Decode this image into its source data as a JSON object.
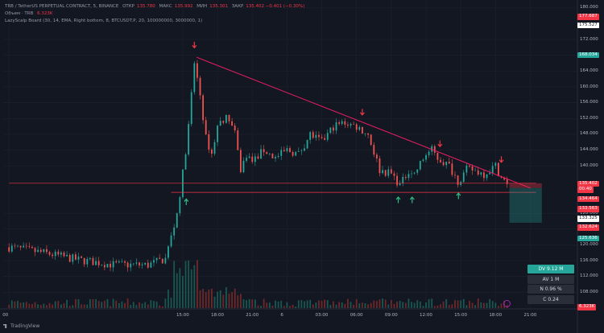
{
  "header": {
    "symbol_line": "TRB / TetherUS PERPETUAL CONTRACT, 5, BINANCE",
    "ohlc": [
      {
        "k": "ОТКР",
        "v": "135.780"
      },
      {
        "k": "МАКС",
        "v": "135.992"
      },
      {
        "k": "МИН",
        "v": "135.301"
      },
      {
        "k": "ЗАКР",
        "v": "135.402 −0.401 (−0.30%)"
      }
    ],
    "volume_line_label": "Объем · TRB",
    "volume_line_value": "6.323K",
    "indicator_line": "LazyScalp Board (30, 14, EMA, Right bottom, 8, BTCUSDT.P, 20, 100000000, 3000000, 1)"
  },
  "stats_panel": {
    "items": [
      "DV 9.12 M",
      "AV 1 M",
      "N 0.96 %",
      "C  0.24"
    ]
  },
  "branding": {
    "label": "TradingView"
  },
  "colors": {
    "bull": "#26a69a",
    "bear": "#ef5350",
    "trendline": "#e91e63",
    "support": "#f23645",
    "down_arrow": "#f23645",
    "up_arrow": "#2ebd85"
  },
  "price_axis": {
    "ticks": [
      "180.000",
      "172.000",
      "168.000",
      "164.000",
      "160.000",
      "156.000",
      "152.000",
      "148.000",
      "144.000",
      "140.000",
      "128.000",
      "124.000",
      "120.000",
      "116.000",
      "112.000",
      "108.000"
    ],
    "tick_values": [
      180,
      172,
      168,
      164,
      160,
      156,
      152,
      148,
      144,
      140,
      128,
      124,
      120,
      116,
      112,
      108
    ],
    "tags": [
      {
        "text": "177.687",
        "value": 177.687,
        "color": "#f23645"
      },
      {
        "text": "175.527",
        "value": 175.527,
        "color": "#ffffff",
        "text_color": "#131722"
      },
      {
        "text": "168.034",
        "value": 168.034,
        "color": "#26a69a"
      },
      {
        "text": "135.402",
        "value": 135.402,
        "color": "#f23645"
      },
      {
        "text": "00:40",
        "value": 133.9,
        "color": "#f23645"
      },
      {
        "text": "134.464",
        "value": 131.5,
        "color": "#f23645"
      },
      {
        "text": "133.563",
        "value": 129.0,
        "color": "#f23645"
      },
      {
        "text": "133.325",
        "value": 126.6,
        "color": "#ffffff",
        "text_color": "#131722"
      },
      {
        "text": "132.624",
        "value": 124.3,
        "color": "#f23645"
      },
      {
        "text": "125.636",
        "value": 121.6,
        "color": "#26a69a"
      },
      {
        "text": "6.323K",
        "value": 104.2,
        "color": "#f23645"
      }
    ]
  },
  "time_axis": {
    "ticks": [
      "00",
      "15:00",
      "18:00",
      "21:00",
      "6",
      "03:00",
      "06:00",
      "09:00",
      "12:00",
      "15:00",
      "18:00",
      "21:00"
    ],
    "tick_hours": [
      0,
      15,
      18,
      21,
      24,
      27,
      30,
      33,
      36,
      39,
      42,
      45
    ]
  },
  "chart_data": {
    "type": "candlestick",
    "title": "TRB / TetherUS PERPETUAL CONTRACT, 5, BINANCE",
    "xlabel": "",
    "ylabel": "",
    "ylim": [
      104,
      182
    ],
    "x_unit": "hours",
    "series": [
      {
        "name": "TRB",
        "points": [
          {
            "t": 0,
            "close": 119.4
          },
          {
            "t": 3,
            "close": 118.0
          },
          {
            "t": 6,
            "close": 116.2
          },
          {
            "t": 9,
            "close": 115.0
          },
          {
            "t": 12,
            "close": 114.9
          },
          {
            "t": 13.5,
            "close": 116.5
          },
          {
            "t": 14,
            "close": 122
          },
          {
            "t": 14.5,
            "close": 128
          },
          {
            "t": 15,
            "close": 138
          },
          {
            "t": 15.5,
            "close": 150
          },
          {
            "t": 16,
            "close": 166
          },
          {
            "t": 16.5,
            "close": 158
          },
          {
            "t": 17,
            "close": 147
          },
          {
            "t": 17.5,
            "close": 143
          },
          {
            "t": 18,
            "close": 150
          },
          {
            "t": 18.5,
            "close": 152
          },
          {
            "t": 19,
            "close": 152
          },
          {
            "t": 19.5,
            "close": 148
          },
          {
            "t": 20,
            "close": 139
          },
          {
            "t": 20.5,
            "close": 143
          },
          {
            "t": 21,
            "close": 141
          },
          {
            "t": 22,
            "close": 144
          },
          {
            "t": 23,
            "close": 142
          },
          {
            "t": 24,
            "close": 144
          },
          {
            "t": 25,
            "close": 143
          },
          {
            "t": 26,
            "close": 148
          },
          {
            "t": 27,
            "close": 146
          },
          {
            "t": 28,
            "close": 150
          },
          {
            "t": 29,
            "close": 151
          },
          {
            "t": 30,
            "close": 150
          },
          {
            "t": 31,
            "close": 148
          },
          {
            "t": 32,
            "close": 139
          },
          {
            "t": 33,
            "close": 138
          },
          {
            "t": 33.8,
            "close": 135
          },
          {
            "t": 34.5,
            "close": 139
          },
          {
            "t": 35,
            "close": 138
          },
          {
            "t": 36,
            "close": 143
          },
          {
            "t": 36.5,
            "close": 144
          },
          {
            "t": 37,
            "close": 142
          },
          {
            "t": 38,
            "close": 140
          },
          {
            "t": 38.8,
            "close": 136
          },
          {
            "t": 39.5,
            "close": 139
          },
          {
            "t": 40,
            "close": 139
          },
          {
            "t": 41,
            "close": 138
          },
          {
            "t": 42,
            "close": 140
          },
          {
            "t": 42.5,
            "close": 137
          },
          {
            "t": 43,
            "close": 135.4
          }
        ]
      }
    ],
    "trendline": [
      {
        "t": 16.2,
        "y": 167.5
      },
      {
        "t": 45,
        "y": 134.4
      }
    ],
    "support_lines": [
      {
        "y": 135.6,
        "t0": 0,
        "t1": 45.5
      },
      {
        "y": 133.3,
        "t0": 14,
        "t1": 45.5
      }
    ],
    "down_arrows": [
      {
        "t": 16.0,
        "y": 170
      },
      {
        "t": 30.5,
        "y": 153
      },
      {
        "t": 37.2,
        "y": 145
      },
      {
        "t": 42.5,
        "y": 141
      }
    ],
    "up_arrows": [
      {
        "t": 15.3,
        "y": 131.5
      },
      {
        "t": 33.6,
        "y": 132
      },
      {
        "t": 34.8,
        "y": 132
      },
      {
        "t": 38.8,
        "y": 133
      }
    ],
    "position": {
      "t0": 43.2,
      "t1": 46.0,
      "entry": 134.4,
      "stop": 135.6,
      "target": 125.6
    },
    "volume": {
      "baseline_y": 104.0,
      "spike_t": [
        14.5,
        15,
        15.5,
        16
      ]
    }
  }
}
